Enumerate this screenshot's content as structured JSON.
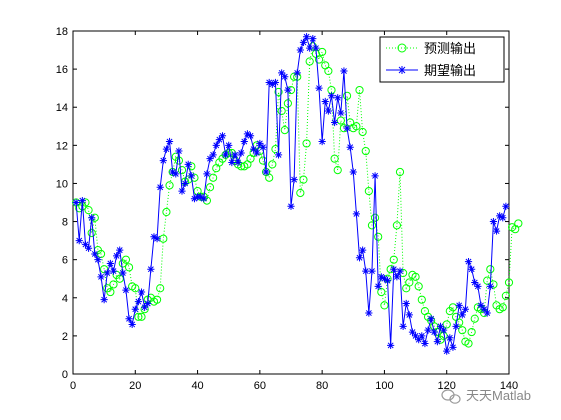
{
  "chart_data": {
    "type": "line",
    "xlim": [
      0,
      140
    ],
    "ylim": [
      0,
      18
    ],
    "xticks": [
      "0",
      "20",
      "40",
      "60",
      "80",
      "100",
      "120",
      "140"
    ],
    "yticks": [
      "0",
      "2",
      "4",
      "6",
      "8",
      "10",
      "12",
      "14",
      "16",
      "18"
    ],
    "grid": false,
    "legend_position": "top-right",
    "series": [
      {
        "name": "预测输出",
        "color": "#00ff00",
        "marker": "circle",
        "line": "dotted",
        "values": [
          9.0,
          8.7,
          8.8,
          9.0,
          8.6,
          7.4,
          8.2,
          6.5,
          6.3,
          5.5,
          4.5,
          4.3,
          4.7,
          5.2,
          5.0,
          5.8,
          6.0,
          5.6,
          4.6,
          4.5,
          3.0,
          3.0,
          3.4,
          3.9,
          4.0,
          3.8,
          3.9,
          4.5,
          7.1,
          8.5,
          9.9,
          10.6,
          11.4,
          11.2,
          10.7,
          10.1,
          10.2,
          10.9,
          10.3,
          9.6,
          9.3,
          9.3,
          9.1,
          9.8,
          10.3,
          10.8,
          11.1,
          11.3,
          11.5,
          11.6,
          11.6,
          11.2,
          11.0,
          10.9,
          10.9,
          11.0,
          11.3,
          11.6,
          12.0,
          11.7,
          11.2,
          10.6,
          10.3,
          11.0,
          11.8,
          14.8,
          13.8,
          12.8,
          14.2,
          14.9,
          15.6,
          15.6,
          9.5,
          10.2,
          12.1,
          16.4,
          17.2,
          16.8,
          16.5,
          16.9,
          16.2,
          15.9,
          14.9,
          11.3,
          10.7,
          13.3,
          12.9,
          14.6,
          13.2,
          12.9,
          13.0,
          14.9,
          12.7,
          11.7,
          9.6,
          7.8,
          8.2,
          7.2,
          4.3,
          3.6,
          5.0,
          5.5,
          6.0,
          7.8,
          10.6,
          5.3,
          4.5,
          4.8,
          5.2,
          5.1,
          4.6,
          3.9,
          3.3,
          3.0,
          2.8,
          2.5,
          2.2,
          1.8,
          2.0,
          2.6,
          3.3,
          3.5,
          3.0,
          2.7,
          2.3,
          1.7,
          1.6,
          2.2,
          2.9,
          3.5,
          3.4,
          3.2,
          4.9,
          5.5,
          4.7,
          3.6,
          3.4,
          3.5,
          4.1,
          4.8,
          7.7,
          7.6,
          7.9
        ]
      },
      {
        "name": "期望输出",
        "color": "#0000ff",
        "marker": "star",
        "line": "solid",
        "values": [
          9.0,
          7.0,
          9.1,
          6.8,
          6.6,
          8.2,
          6.3,
          6.0,
          5.1,
          3.9,
          5.3,
          5.8,
          5.4,
          6.2,
          6.5,
          5.3,
          4.4,
          2.9,
          2.6,
          3.4,
          3.8,
          4.3,
          3.5,
          3.7,
          5.5,
          7.2,
          7.1,
          9.8,
          11.2,
          11.8,
          12.2,
          10.6,
          10.5,
          11.7,
          9.6,
          10.0,
          11.0,
          10.4,
          9.2,
          9.3,
          9.3,
          9.2,
          10.5,
          11.3,
          11.5,
          12.0,
          12.3,
          12.5,
          11.5,
          12.0,
          11.1,
          11.5,
          11.1,
          11.6,
          12.2,
          12.6,
          12.5,
          11.8,
          11.6,
          12.1,
          11.9,
          10.6,
          15.3,
          15.2,
          15.3,
          11.5,
          15.8,
          15.6,
          14.9,
          8.8,
          10.2,
          15.8,
          17.0,
          17.4,
          17.7,
          17.1,
          17.6,
          17.1,
          15.0,
          12.2,
          14.3,
          13.8,
          14.6,
          13.2,
          14.5,
          13.7,
          15.9,
          12.9,
          11.9,
          10.6,
          8.4,
          6.1,
          6.5,
          5.4,
          3.2,
          5.4,
          10.4,
          4.6,
          5.1,
          5.0,
          4.9,
          1.5,
          5.5,
          5.1,
          5.4,
          2.5,
          3.7,
          3.1,
          2.2,
          2.0,
          1.8,
          2.0,
          1.6,
          2.3,
          2.9,
          2.2,
          1.7,
          2.5,
          2.3,
          1.2,
          1.9,
          1.4,
          2.5,
          3.6,
          3.1,
          3.4,
          5.9,
          5.5,
          4.8,
          4.6,
          3.6,
          3.4,
          3.2,
          4.6,
          8.0,
          7.5,
          8.3,
          8.2,
          8.8
        ]
      }
    ]
  },
  "watermark": {
    "text": "天天Matlab"
  }
}
